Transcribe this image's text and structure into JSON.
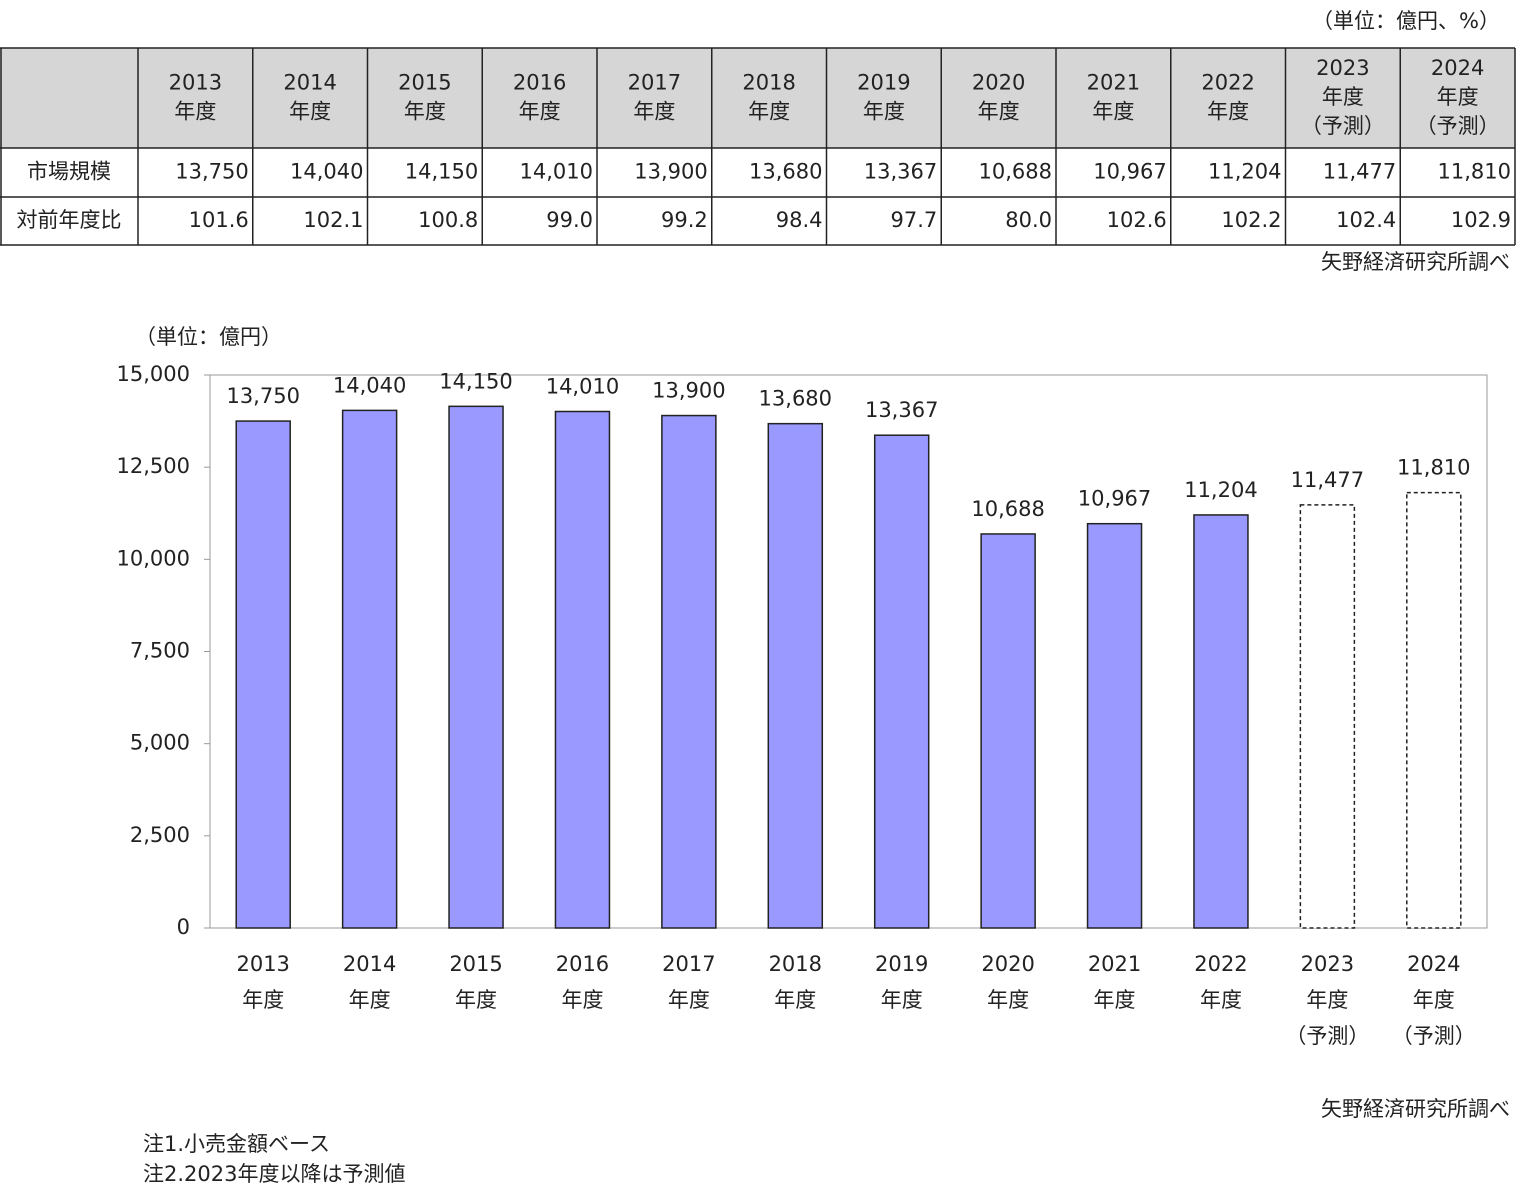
{
  "table": {
    "unit": "（単位：億円、%）",
    "columns": [
      [
        "2013",
        "年度"
      ],
      [
        "2014",
        "年度"
      ],
      [
        "2015",
        "年度"
      ],
      [
        "2016",
        "年度"
      ],
      [
        "2017",
        "年度"
      ],
      [
        "2018",
        "年度"
      ],
      [
        "2019",
        "年度"
      ],
      [
        "2020",
        "年度"
      ],
      [
        "2021",
        "年度"
      ],
      [
        "2022",
        "年度"
      ],
      [
        "2023",
        "年度",
        "（予測）"
      ],
      [
        "2024",
        "年度",
        "（予測）"
      ]
    ],
    "rows": [
      {
        "label": "市場規模",
        "values": [
          "13,750",
          "14,040",
          "14,150",
          "14,010",
          "13,900",
          "13,680",
          "13,367",
          "10,688",
          "10,967",
          "11,204",
          "11,477",
          "11,810"
        ]
      },
      {
        "label": "対前年度比",
        "values": [
          "101.6",
          "102.1",
          "100.8",
          "99.0",
          "99.2",
          "98.4",
          "97.7",
          "80.0",
          "102.6",
          "102.2",
          "102.4",
          "102.9"
        ]
      }
    ],
    "source": "矢野経済研究所調べ"
  },
  "chart_data": {
    "type": "bar",
    "y_unit": "（単位：億円）",
    "categories": [
      [
        "2013",
        "年度"
      ],
      [
        "2014",
        "年度"
      ],
      [
        "2015",
        "年度"
      ],
      [
        "2016",
        "年度"
      ],
      [
        "2017",
        "年度"
      ],
      [
        "2018",
        "年度"
      ],
      [
        "2019",
        "年度"
      ],
      [
        "2020",
        "年度"
      ],
      [
        "2021",
        "年度"
      ],
      [
        "2022",
        "年度"
      ],
      [
        "2023",
        "年度",
        "（予測）"
      ],
      [
        "2024",
        "年度",
        "（予測）"
      ]
    ],
    "values": [
      13750,
      14040,
      14150,
      14010,
      13900,
      13680,
      13367,
      10688,
      10967,
      11204,
      11477,
      11810
    ],
    "value_labels": [
      "13,750",
      "14,040",
      "14,150",
      "14,010",
      "13,900",
      "13,680",
      "13,367",
      "10,688",
      "10,967",
      "11,204",
      "11,477",
      "11,810"
    ],
    "colors": [
      "#9999ff",
      "#9999ff",
      "#9999ff",
      "#9999ff",
      "#9999ff",
      "#9999ff",
      "#9999ff",
      "#9999ff",
      "#9999ff",
      "#9999ff",
      "#ffffff",
      "#ffffff"
    ],
    "borders": [
      "solid",
      "solid",
      "solid",
      "solid",
      "solid",
      "solid",
      "solid",
      "solid",
      "solid",
      "solid",
      "dashed",
      "dashed"
    ],
    "ylim": [
      0,
      15000
    ],
    "yticks": [
      0,
      {
        "value": 2500,
        "label": "2,500"
      },
      {
        "value": 5000,
        "label": "5,000"
      },
      {
        "value": 7500,
        "label": "7,500"
      },
      {
        "value": 10000,
        "label": "10,000"
      },
      {
        "value": 12500,
        "label": "12,500"
      },
      {
        "value": 15000,
        "label": "15,000"
      }
    ],
    "source": "矢野経済研究所調べ",
    "notes": [
      "注1.小売金額ベース",
      "注2.2023年度以降は予測値"
    ]
  }
}
